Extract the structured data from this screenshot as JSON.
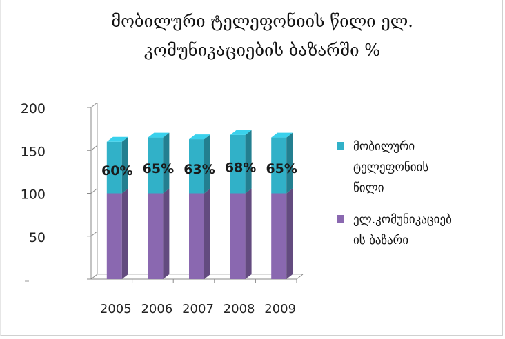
{
  "chart_data": {
    "type": "bar",
    "stacked": true,
    "three_d": true,
    "title_lines": [
      "მობილური ტელეფონიის წილი ელ.",
      "კომუნიკაციების ბაზარში %"
    ],
    "categories": [
      "2005",
      "2006",
      "2007",
      "2008",
      "2009"
    ],
    "series": [
      {
        "name": "ელ.კომუნიკაციებ ის ბაზარი",
        "color": "#8a68b0",
        "values": [
          100,
          100,
          100,
          100,
          100
        ]
      },
      {
        "name": "მობილური ტელეფონიის წილი",
        "color": "#31b1c8",
        "values": [
          60,
          65,
          63,
          68,
          65
        ],
        "data_labels": [
          "60%",
          "65%",
          "63%",
          "68%",
          "65%"
        ]
      }
    ],
    "y_ticks": [
      "0",
      "50",
      "100",
      "150",
      "200"
    ],
    "ylim": [
      0,
      200
    ],
    "grid": false,
    "legend_position": "right"
  }
}
